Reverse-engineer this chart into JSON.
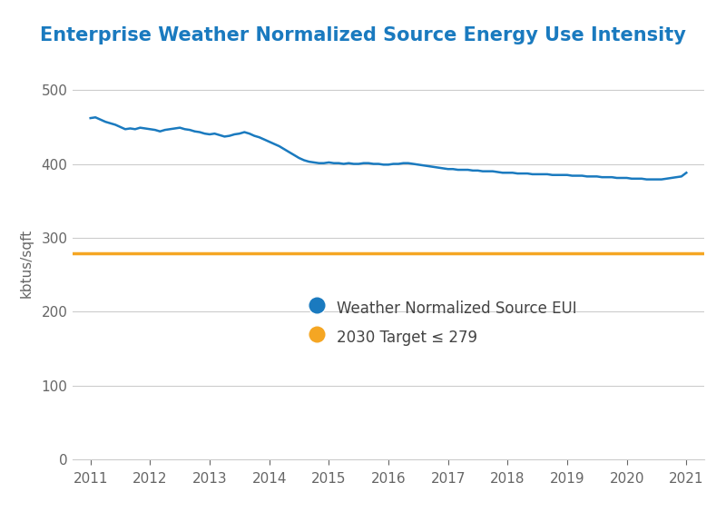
{
  "title": "Enterprise Weather Normalized Source Energy Use Intensity",
  "title_color": "#1a7abf",
  "ylabel": "kbtus/sqft",
  "ylabel_color": "#666666",
  "xlim": [
    2010.7,
    2021.3
  ],
  "ylim": [
    0,
    530
  ],
  "yticks": [
    0,
    100,
    200,
    300,
    400,
    500
  ],
  "xticks": [
    2011,
    2012,
    2013,
    2014,
    2015,
    2016,
    2017,
    2018,
    2019,
    2020,
    2021
  ],
  "background_color": "#ffffff",
  "grid_color": "#cccccc",
  "eui_color": "#1a7abf",
  "target_color": "#f5a623",
  "target_value": 279,
  "target_label": "2030 Target ≤ 279",
  "eui_label": "Weather Normalized Source EUI",
  "eui_data": {
    "x": [
      2011.0,
      2011.083,
      2011.167,
      2011.25,
      2011.333,
      2011.417,
      2011.5,
      2011.583,
      2011.667,
      2011.75,
      2011.833,
      2011.917,
      2012.0,
      2012.083,
      2012.167,
      2012.25,
      2012.333,
      2012.417,
      2012.5,
      2012.583,
      2012.667,
      2012.75,
      2012.833,
      2012.917,
      2013.0,
      2013.083,
      2013.167,
      2013.25,
      2013.333,
      2013.417,
      2013.5,
      2013.583,
      2013.667,
      2013.75,
      2013.833,
      2013.917,
      2014.0,
      2014.083,
      2014.167,
      2014.25,
      2014.333,
      2014.417,
      2014.5,
      2014.583,
      2014.667,
      2014.75,
      2014.833,
      2014.917,
      2015.0,
      2015.083,
      2015.167,
      2015.25,
      2015.333,
      2015.417,
      2015.5,
      2015.583,
      2015.667,
      2015.75,
      2015.833,
      2015.917,
      2016.0,
      2016.083,
      2016.167,
      2016.25,
      2016.333,
      2016.417,
      2016.5,
      2016.583,
      2016.667,
      2016.75,
      2016.833,
      2016.917,
      2017.0,
      2017.083,
      2017.167,
      2017.25,
      2017.333,
      2017.417,
      2017.5,
      2017.583,
      2017.667,
      2017.75,
      2017.833,
      2017.917,
      2018.0,
      2018.083,
      2018.167,
      2018.25,
      2018.333,
      2018.417,
      2018.5,
      2018.583,
      2018.667,
      2018.75,
      2018.833,
      2018.917,
      2019.0,
      2019.083,
      2019.167,
      2019.25,
      2019.333,
      2019.417,
      2019.5,
      2019.583,
      2019.667,
      2019.75,
      2019.833,
      2019.917,
      2020.0,
      2020.083,
      2020.167,
      2020.25,
      2020.333,
      2020.417,
      2020.5,
      2020.583,
      2020.667,
      2020.75,
      2020.833,
      2020.917,
      2021.0
    ],
    "y": [
      462,
      463,
      460,
      457,
      455,
      453,
      450,
      447,
      448,
      447,
      449,
      448,
      447,
      446,
      444,
      446,
      447,
      448,
      449,
      447,
      446,
      444,
      443,
      441,
      440,
      441,
      439,
      437,
      438,
      440,
      441,
      443,
      441,
      438,
      436,
      433,
      430,
      427,
      424,
      420,
      416,
      412,
      408,
      405,
      403,
      402,
      401,
      401,
      402,
      401,
      401,
      400,
      401,
      400,
      400,
      401,
      401,
      400,
      400,
      399,
      399,
      400,
      400,
      401,
      401,
      400,
      399,
      398,
      397,
      396,
      395,
      394,
      393,
      393,
      392,
      392,
      392,
      391,
      391,
      390,
      390,
      390,
      389,
      388,
      388,
      388,
      387,
      387,
      387,
      386,
      386,
      386,
      386,
      385,
      385,
      385,
      385,
      384,
      384,
      384,
      383,
      383,
      383,
      382,
      382,
      382,
      381,
      381,
      381,
      380,
      380,
      380,
      379,
      379,
      379,
      379,
      380,
      381,
      382,
      383,
      388
    ]
  }
}
